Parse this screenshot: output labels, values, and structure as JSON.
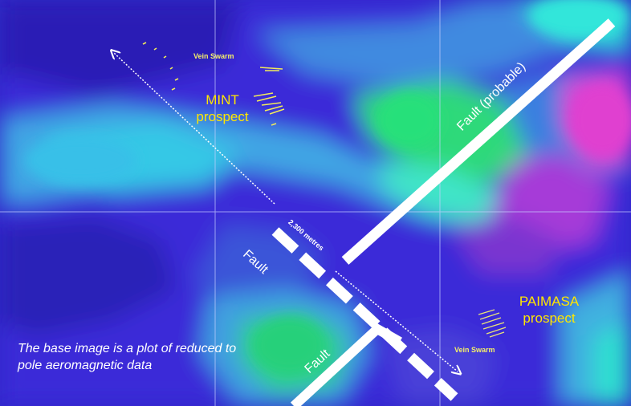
{
  "map": {
    "prospects": [
      {
        "id": "mint",
        "name_line1": "MINT",
        "name_line2": "prospect"
      },
      {
        "id": "paimasa",
        "name_line1": "PAIMASA",
        "name_line2": "prospect"
      }
    ],
    "vein_swarm_label": "Vein Swarm",
    "fault_labels": {
      "probable": "Fault (probable)",
      "fault_a": "Fault",
      "fault_b": "Fault"
    },
    "distance_label": "2,300 metres",
    "caption": "The base image is a plot of reduced to pole aeromagnetic data",
    "colors": {
      "prospect_text": "#ffe600",
      "fault_line": "#ffffff",
      "grid_line": "#c8d0ff",
      "background_low": "#3a2ad8",
      "anomaly_green": "#2ee38a",
      "anomaly_magenta": "#e03fd4"
    }
  }
}
